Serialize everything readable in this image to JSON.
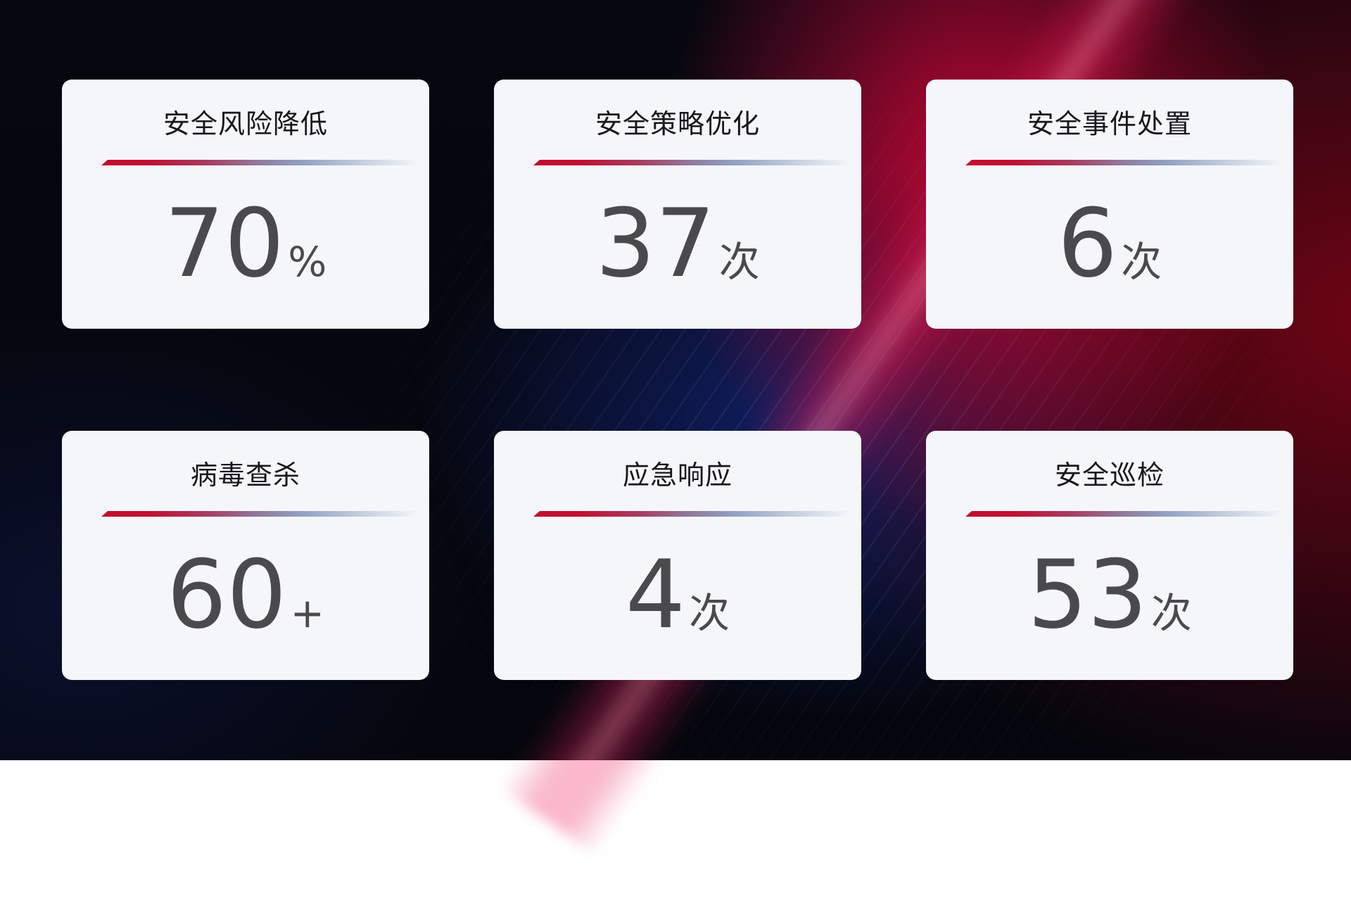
{
  "page": {
    "kind": "security-operations-stat-board",
    "colors": {
      "background_base": "#05060e",
      "background_blue_glow": "#14267e",
      "background_red_glow": "#c50738",
      "background_dark_red": "#760414",
      "card_background": "#f5f6fa",
      "title_text": "#17171c",
      "value_text": "#4a4a4e",
      "divider_start": "#c30c2e",
      "divider_mid": "#8f7c9f",
      "divider_end": "#bcc8da"
    }
  },
  "cards": [
    {
      "title": "安全风险降低",
      "value": "70",
      "unit": "%"
    },
    {
      "title": "安全策略优化",
      "value": "37",
      "unit": "次"
    },
    {
      "title": "安全事件处置",
      "value": "6",
      "unit": "次"
    },
    {
      "title": "病毒查杀",
      "value": "60",
      "unit": "+"
    },
    {
      "title": "应急响应",
      "value": "4",
      "unit": "次"
    },
    {
      "title": "安全巡检",
      "value": "53",
      "unit": "次"
    }
  ]
}
